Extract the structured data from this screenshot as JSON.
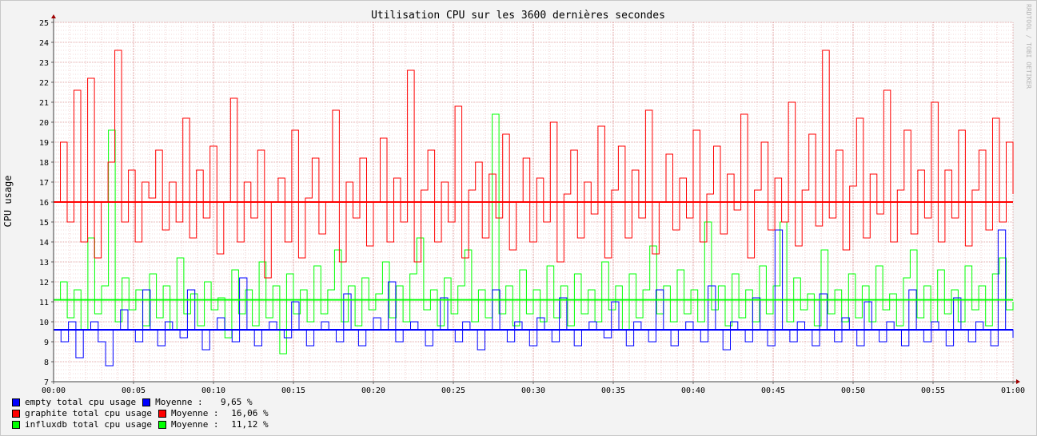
{
  "chart_data": {
    "type": "line",
    "title": "Utilisation CPU sur les 3600 dernières secondes",
    "ylabel": "CPU usage",
    "xlabel": "",
    "watermark": "RRDTOOL / TOBI OETIKER",
    "ylim": [
      7,
      25
    ],
    "yticks": [
      "7",
      "8",
      "9",
      "10",
      "11",
      "12",
      "13",
      "14",
      "15",
      "16",
      "17",
      "18",
      "19",
      "20",
      "21",
      "22",
      "23",
      "24",
      "25"
    ],
    "xlim_seconds": [
      0,
      3600
    ],
    "xticks": [
      "00:00",
      "00:05",
      "00:10",
      "00:15",
      "00:20",
      "00:25",
      "00:30",
      "00:35",
      "00:40",
      "00:45",
      "00:50",
      "00:55",
      "01:00"
    ],
    "grid": true,
    "series": [
      {
        "name": "empty total cpu usage",
        "color": "#0000ff",
        "avg_label": "Moyenne :",
        "avg_text": "9,65 %",
        "mean": 9.65,
        "baseline": 9.6,
        "values": [
          9.6,
          9.0,
          10.0,
          8.2,
          9.6,
          10.0,
          9.0,
          7.8,
          9.6,
          10.6,
          9.6,
          9.0,
          11.6,
          9.6,
          8.8,
          10.0,
          9.6,
          9.2,
          11.6,
          9.6,
          8.6,
          9.6,
          10.2,
          9.6,
          9.0,
          12.2,
          9.6,
          8.8,
          9.6,
          10.0,
          9.6,
          9.2,
          11.0,
          9.6,
          8.8,
          9.6,
          10.0,
          9.6,
          9.0,
          11.4,
          9.6,
          8.8,
          9.6,
          10.2,
          9.6,
          12.0,
          9.0,
          9.6,
          10.0,
          9.6,
          8.8,
          9.6,
          11.2,
          9.6,
          9.0,
          10.0,
          9.6,
          8.6,
          9.6,
          11.6,
          9.6,
          9.0,
          10.0,
          9.6,
          8.8,
          10.2,
          9.6,
          9.0,
          11.2,
          9.6,
          8.8,
          9.6,
          10.0,
          9.6,
          9.2,
          11.0,
          9.6,
          8.8,
          10.0,
          9.6,
          9.0,
          11.6,
          9.6,
          8.8,
          9.6,
          10.0,
          9.6,
          9.0,
          11.8,
          9.6,
          8.6,
          10.0,
          9.6,
          9.0,
          11.2,
          9.6,
          8.8,
          14.6,
          9.6,
          9.0,
          10.0,
          9.6,
          8.8,
          11.4,
          9.6,
          9.0,
          10.2,
          9.6,
          8.8,
          11.0,
          9.6,
          9.0,
          10.0,
          9.6,
          8.8,
          11.6,
          9.6,
          9.0,
          10.0,
          9.6,
          8.8,
          11.2,
          9.6,
          9.0,
          10.0,
          9.6,
          8.8,
          14.6,
          9.6,
          9.2
        ]
      },
      {
        "name": "graphite total cpu usage",
        "color": "#ff0000",
        "avg_label": "Moyenne :",
        "avg_text": "16,06 %",
        "mean": 16.06,
        "baseline": 16.0,
        "values": [
          16.0,
          19.0,
          15.0,
          21.6,
          14.0,
          22.2,
          13.2,
          16.0,
          18.0,
          23.6,
          15.0,
          17.6,
          14.0,
          17.0,
          16.2,
          18.6,
          14.6,
          17.0,
          15.0,
          20.2,
          14.2,
          17.6,
          15.2,
          18.8,
          13.4,
          16.0,
          21.2,
          14.0,
          17.0,
          15.2,
          18.6,
          12.2,
          16.0,
          17.2,
          14.0,
          19.6,
          13.2,
          16.2,
          18.2,
          14.4,
          16.0,
          20.6,
          13.0,
          17.0,
          15.2,
          18.2,
          13.8,
          16.0,
          19.2,
          14.0,
          17.2,
          15.0,
          22.6,
          13.0,
          16.6,
          18.6,
          14.0,
          17.0,
          15.0,
          20.8,
          13.2,
          16.6,
          18.0,
          14.2,
          17.4,
          15.2,
          19.4,
          13.6,
          16.0,
          18.2,
          14.0,
          17.2,
          15.0,
          20.0,
          13.0,
          16.4,
          18.6,
          14.2,
          17.0,
          15.4,
          19.8,
          13.2,
          16.6,
          18.8,
          14.2,
          17.6,
          15.2,
          20.6,
          13.4,
          16.0,
          18.4,
          14.6,
          17.2,
          15.2,
          19.6,
          14.0,
          16.4,
          18.8,
          14.4,
          17.4,
          15.6,
          20.4,
          13.2,
          16.6,
          19.0,
          14.6,
          17.2,
          15.0,
          21.0,
          13.8,
          16.6,
          19.4,
          14.8,
          23.6,
          15.2,
          18.6,
          13.6,
          16.8,
          20.2,
          14.2,
          17.4,
          15.4,
          21.6,
          14.0,
          16.6,
          19.6,
          14.4,
          17.6,
          15.2,
          21.0,
          14.0,
          17.6,
          15.2,
          19.6,
          13.8,
          16.6,
          18.6,
          14.6,
          20.2,
          15.0,
          19.0,
          16.4
        ]
      },
      {
        "name": "influxdb total cpu usage",
        "color": "#00ff00",
        "avg_label": "Moyenne :",
        "avg_text": "11,12 %",
        "mean": 11.12,
        "baseline": 11.1,
        "values": [
          11.1,
          12.0,
          10.2,
          11.6,
          9.6,
          14.2,
          10.4,
          11.8,
          19.6,
          10.0,
          12.2,
          10.6,
          11.6,
          9.8,
          12.4,
          10.2,
          11.8,
          9.6,
          13.2,
          10.4,
          11.4,
          9.8,
          12.0,
          10.6,
          11.2,
          9.2,
          12.6,
          10.4,
          11.6,
          9.8,
          13.0,
          10.2,
          11.8,
          8.4,
          12.4,
          10.4,
          11.6,
          10.0,
          12.8,
          10.4,
          11.6,
          13.6,
          10.0,
          11.8,
          9.8,
          12.2,
          10.6,
          11.4,
          13.0,
          10.2,
          11.8,
          10.0,
          12.4,
          14.2,
          10.6,
          11.6,
          9.8,
          12.2,
          10.4,
          11.8,
          13.6,
          10.0,
          11.6,
          10.2,
          20.4,
          10.4,
          11.8,
          9.8,
          12.6,
          10.4,
          11.6,
          10.0,
          12.8,
          10.2,
          11.8,
          9.8,
          12.4,
          10.4,
          11.6,
          10.0,
          13.0,
          10.6,
          11.8,
          9.6,
          12.4,
          10.2,
          11.6,
          13.8,
          10.4,
          11.8,
          10.0,
          12.6,
          10.4,
          11.6,
          10.0,
          15.0,
          10.6,
          11.8,
          9.8,
          12.4,
          10.2,
          11.6,
          10.0,
          12.8,
          10.4,
          11.8,
          15.0,
          10.0,
          12.2,
          10.6,
          11.4,
          9.8,
          13.6,
          10.4,
          11.6,
          10.0,
          12.4,
          10.2,
          11.8,
          10.0,
          12.8,
          10.6,
          11.4,
          9.8,
          12.2,
          13.6,
          10.2,
          11.8,
          10.0,
          12.6,
          10.4,
          11.6,
          10.0,
          12.8,
          10.6,
          11.8,
          9.8,
          12.4,
          13.2,
          10.6,
          11.0
        ]
      }
    ]
  }
}
